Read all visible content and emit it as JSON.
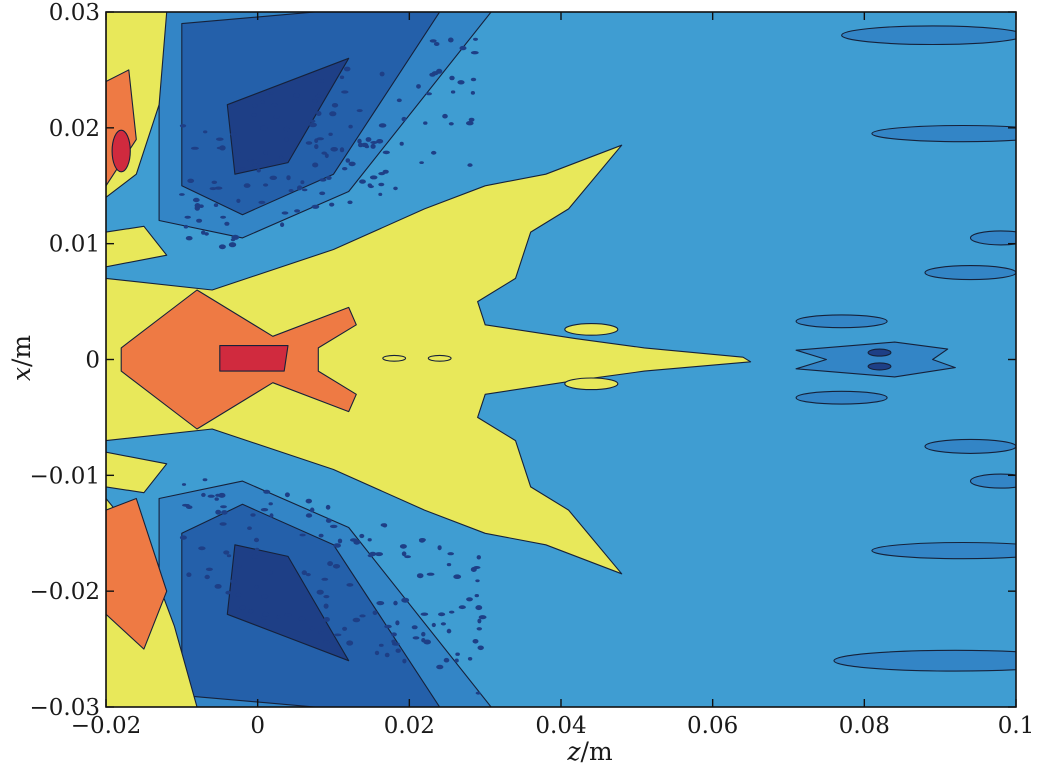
{
  "chart_data": {
    "type": "heatmap",
    "title": "",
    "xlabel": "z/m",
    "ylabel": "x/m",
    "xlabel_var": "z",
    "xlabel_unit": "/m",
    "ylabel_var": "x",
    "ylabel_unit": "/m",
    "xlim": [
      -0.02,
      0.1
    ],
    "ylim": [
      -0.03,
      0.03
    ],
    "x_ticks": [
      -0.02,
      0,
      0.02,
      0.04,
      0.06,
      0.08,
      0.1
    ],
    "x_tick_labels": [
      "−0.02",
      "0",
      "0.02",
      "0.04",
      "0.06",
      "0.08",
      "0.1"
    ],
    "y_ticks": [
      0.03,
      0.02,
      0.01,
      0,
      -0.01,
      -0.02,
      -0.03
    ],
    "y_tick_labels": [
      "0.03",
      "0.02",
      "0.01",
      "0",
      "−0.01",
      "−0.02",
      "−0.03"
    ],
    "grid": false,
    "legend": "none",
    "levels": [
      {
        "level": 1,
        "color": "#1e3f86"
      },
      {
        "level": 2,
        "color": "#2460aa"
      },
      {
        "level": 3,
        "color": "#3385c6"
      },
      {
        "level": 4,
        "color": "#3f9dd2"
      },
      {
        "level": 5,
        "color": "#e8e85a"
      },
      {
        "level": 6,
        "color": "#ee7a44"
      },
      {
        "level": 7,
        "color": "#d02a3e"
      }
    ]
  }
}
